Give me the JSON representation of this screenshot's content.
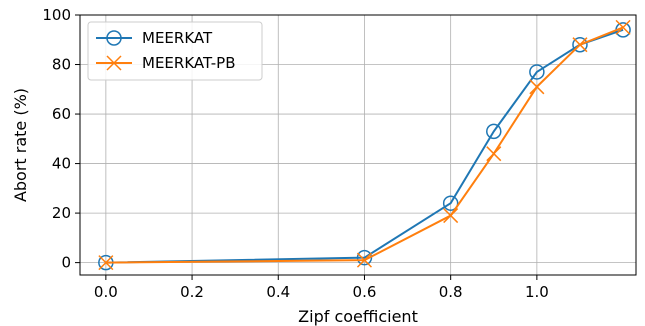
{
  "chart_data": {
    "type": "line",
    "title": "",
    "xlabel": "Zipf coefficient",
    "ylabel": "Abort rate (%)",
    "xlim": [
      -0.06,
      1.23
    ],
    "ylim": [
      -5,
      100
    ],
    "x_ticks": [
      0.0,
      0.2,
      0.4,
      0.6,
      0.8,
      1.0
    ],
    "x_tick_labels": [
      "0.0",
      "0.2",
      "0.4",
      "0.6",
      "0.8",
      "1.0"
    ],
    "y_ticks": [
      0,
      20,
      40,
      60,
      80,
      100
    ],
    "y_tick_labels": [
      "0",
      "20",
      "40",
      "60",
      "80",
      "100"
    ],
    "grid": true,
    "legend_position": "top-left",
    "x": [
      0.0,
      0.6,
      0.8,
      0.9,
      1.0,
      1.1,
      1.2
    ],
    "series": [
      {
        "name": "MEERKAT",
        "color": "#1f77b4",
        "marker": "circle-open",
        "values": [
          0,
          2,
          24,
          53,
          77,
          88,
          94
        ]
      },
      {
        "name": "MEERKAT-PB",
        "color": "#ff7f0e",
        "marker": "x",
        "values": [
          0,
          1,
          19,
          44,
          71,
          88,
          95
        ]
      }
    ]
  }
}
